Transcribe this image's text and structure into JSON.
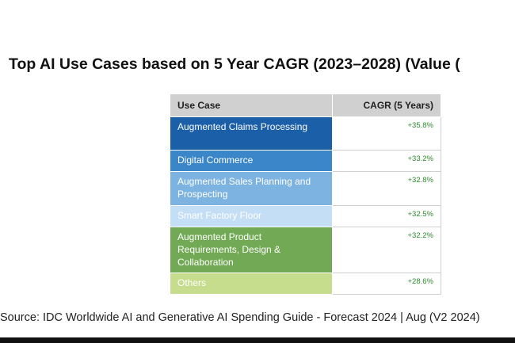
{
  "chart_data": {
    "type": "table",
    "title": "Top AI Use Cases based on 5 Year CAGR (2023–2028) (Value (",
    "columns": [
      "Use Case",
      "CAGR (5 Years)"
    ],
    "rows": [
      {
        "label": "Augmented Claims Processing",
        "value": "+35.8%",
        "color": "#1a5fa8",
        "height": 42
      },
      {
        "label": "Digital Commerce",
        "value": "+33.2%",
        "color": "#3a86c8",
        "height": 27
      },
      {
        "label": "Augmented Sales Planning and Prospecting",
        "value": "+32.8%",
        "color": "#7db3e0",
        "height": 43
      },
      {
        "label": "Smart Factory Floor",
        "value": "+32.5%",
        "color": "#c4def5",
        "height": 27
      },
      {
        "label": "Augmented Product Requirements, Design & Collaboration",
        "value": "+32.2%",
        "color": "#72a955",
        "height": 58
      },
      {
        "label": "Others",
        "value": "+28.6%",
        "color": "#c5dd8c",
        "height": 27
      }
    ],
    "source": "Source: IDC Worldwide AI and Generative AI Spending Guide - Forecast 2024 | Aug (V2 2024)"
  }
}
